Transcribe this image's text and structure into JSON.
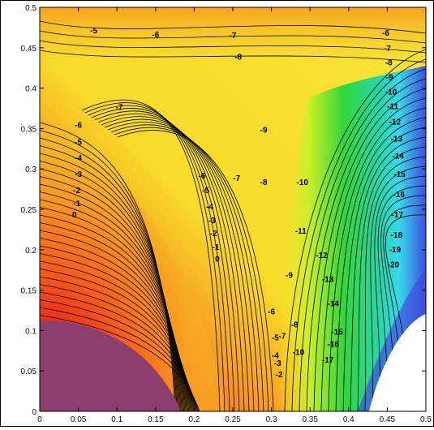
{
  "chart_data": {
    "type": "heatmap",
    "subtype": "filled contour plot",
    "title": "",
    "xlabel": "",
    "ylabel": "",
    "xlim": [
      0,
      0.5
    ],
    "ylim": [
      0,
      0.5
    ],
    "x_ticks": [
      "0",
      "0.05",
      "0.1",
      "0.15",
      "0.2",
      "0.25",
      "0.3",
      "0.35",
      "0.4",
      "0.45",
      "0.5"
    ],
    "y_ticks": [
      "0",
      "0.05",
      "0.1",
      "0.15",
      "0.2",
      "0.25",
      "0.3",
      "0.35",
      "0.4",
      "0.45",
      "0.5"
    ],
    "grid": false,
    "colormap": "jet (purple = high, red/orange/yellow, green, cyan, blue = low)",
    "contour_level_range": [
      -20,
      8
    ],
    "contour_labels": [
      {
        "text": "-5",
        "x": 0.07,
        "y": 0.468
      },
      {
        "text": "-6",
        "x": 0.15,
        "y": 0.463
      },
      {
        "text": "-7",
        "x": 0.25,
        "y": 0.462
      },
      {
        "text": "-8",
        "x": 0.257,
        "y": 0.435
      },
      {
        "text": "-7",
        "x": 0.103,
        "y": 0.373
      },
      {
        "text": "-6",
        "x": 0.05,
        "y": 0.351
      },
      {
        "text": "-5",
        "x": 0.05,
        "y": 0.33
      },
      {
        "text": "-4",
        "x": 0.05,
        "y": 0.31
      },
      {
        "text": "-3",
        "x": 0.05,
        "y": 0.29
      },
      {
        "text": "-2",
        "x": 0.048,
        "y": 0.27
      },
      {
        "text": "-1",
        "x": 0.048,
        "y": 0.254
      },
      {
        "text": "0",
        "x": 0.045,
        "y": 0.24
      },
      {
        "text": "-6",
        "x": 0.21,
        "y": 0.288
      },
      {
        "text": "-5",
        "x": 0.215,
        "y": 0.27
      },
      {
        "text": "-4",
        "x": 0.22,
        "y": 0.25
      },
      {
        "text": "-3",
        "x": 0.223,
        "y": 0.233
      },
      {
        "text": "-2",
        "x": 0.225,
        "y": 0.217
      },
      {
        "text": "-1",
        "x": 0.228,
        "y": 0.2
      },
      {
        "text": "0",
        "x": 0.23,
        "y": 0.185
      },
      {
        "text": "-7",
        "x": 0.255,
        "y": 0.285
      },
      {
        "text": "-8",
        "x": 0.29,
        "y": 0.28
      },
      {
        "text": "-9",
        "x": 0.29,
        "y": 0.345
      },
      {
        "text": "-10",
        "x": 0.34,
        "y": 0.28
      },
      {
        "text": "-11",
        "x": 0.338,
        "y": 0.22
      },
      {
        "text": "-12",
        "x": 0.365,
        "y": 0.19
      },
      {
        "text": "-13",
        "x": 0.373,
        "y": 0.16
      },
      {
        "text": "-14",
        "x": 0.38,
        "y": 0.13
      },
      {
        "text": "-9",
        "x": 0.323,
        "y": 0.165
      },
      {
        "text": "-8",
        "x": 0.33,
        "y": 0.104
      },
      {
        "text": "-7",
        "x": 0.314,
        "y": 0.09
      },
      {
        "text": "-6",
        "x": 0.3,
        "y": 0.12
      },
      {
        "text": "-5",
        "x": 0.305,
        "y": 0.088
      },
      {
        "text": "-4",
        "x": 0.305,
        "y": 0.066
      },
      {
        "text": "-3",
        "x": 0.308,
        "y": 0.056
      },
      {
        "text": "-2",
        "x": 0.31,
        "y": 0.042
      },
      {
        "text": "-10",
        "x": 0.335,
        "y": 0.07
      },
      {
        "text": "-15",
        "x": 0.385,
        "y": 0.095
      },
      {
        "text": "-16",
        "x": 0.38,
        "y": 0.08
      },
      {
        "text": "-17",
        "x": 0.373,
        "y": 0.06
      },
      {
        "text": "-6",
        "x": 0.448,
        "y": 0.465
      },
      {
        "text": "-7",
        "x": 0.45,
        "y": 0.446
      },
      {
        "text": "-8",
        "x": 0.452,
        "y": 0.428
      },
      {
        "text": "-9",
        "x": 0.453,
        "y": 0.41
      },
      {
        "text": "-10",
        "x": 0.455,
        "y": 0.392
      },
      {
        "text": "-11",
        "x": 0.457,
        "y": 0.374
      },
      {
        "text": "-12",
        "x": 0.46,
        "y": 0.355
      },
      {
        "text": "-13",
        "x": 0.462,
        "y": 0.334
      },
      {
        "text": "-14",
        "x": 0.464,
        "y": 0.313
      },
      {
        "text": "-15",
        "x": 0.466,
        "y": 0.29
      },
      {
        "text": "-16",
        "x": 0.465,
        "y": 0.265
      },
      {
        "text": "-17",
        "x": 0.463,
        "y": 0.24
      },
      {
        "text": "-18",
        "x": 0.462,
        "y": 0.215
      },
      {
        "text": "-19",
        "x": 0.46,
        "y": 0.197
      },
      {
        "text": "-20",
        "x": 0.458,
        "y": 0.178
      }
    ]
  },
  "colors": {
    "purple_region": "#8c3f6f",
    "red": "#e01a1a",
    "orange": "#f5861c",
    "yellow": "#f8e21f",
    "green": "#22d13a",
    "cyan": "#2ee6d7",
    "blue": "#3c4be0",
    "white_region": "#ffffff",
    "contour_line": "#000000"
  }
}
